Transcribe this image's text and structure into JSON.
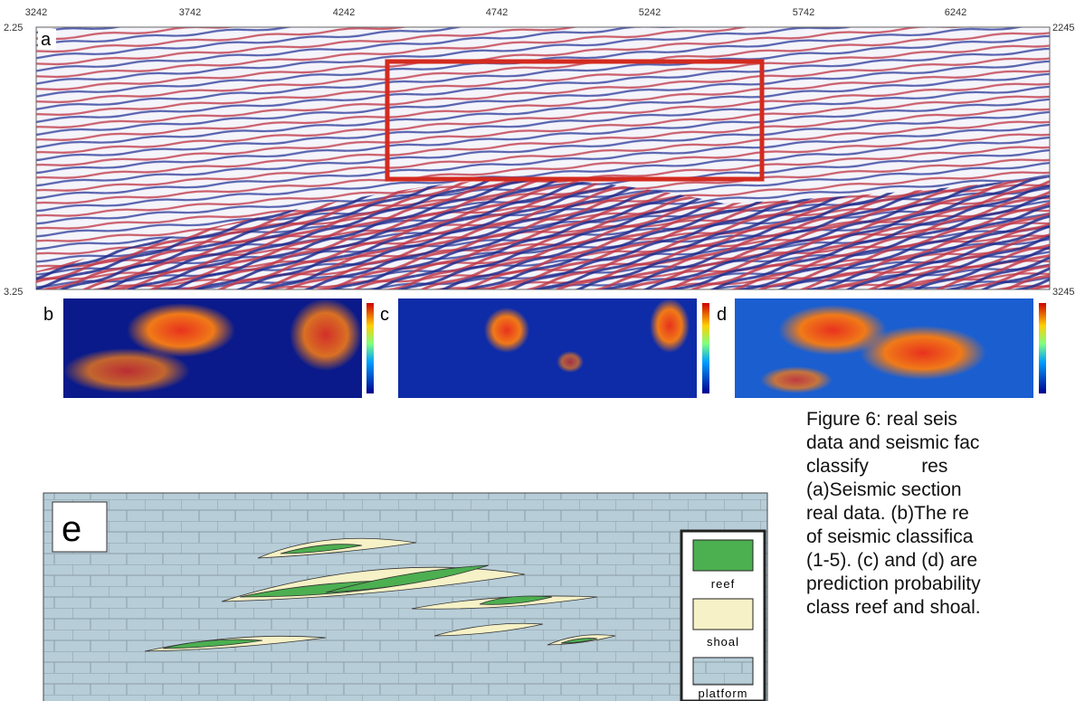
{
  "axis": {
    "top_ticks": [
      "3242",
      "3742",
      "4242",
      "4742",
      "5242",
      "5742",
      "6242"
    ],
    "left_ticks": [
      "2.25",
      "3.25"
    ],
    "right_ticks": [
      "2245",
      "3245"
    ]
  },
  "panels": {
    "a": "a",
    "b": "b",
    "c": "c",
    "d": "d",
    "e": "e"
  },
  "legend": [
    "reef",
    "shoal",
    "platform"
  ],
  "caption": [
    "Figure 6: real seis",
    "data and seismic fac",
    "classify          res",
    "(a)Seismic section",
    "real data. (b)The re",
    "of seismic classifica",
    "(1-5). (c) and (d) are",
    "prediction probability",
    "class reef and shoal."
  ]
}
